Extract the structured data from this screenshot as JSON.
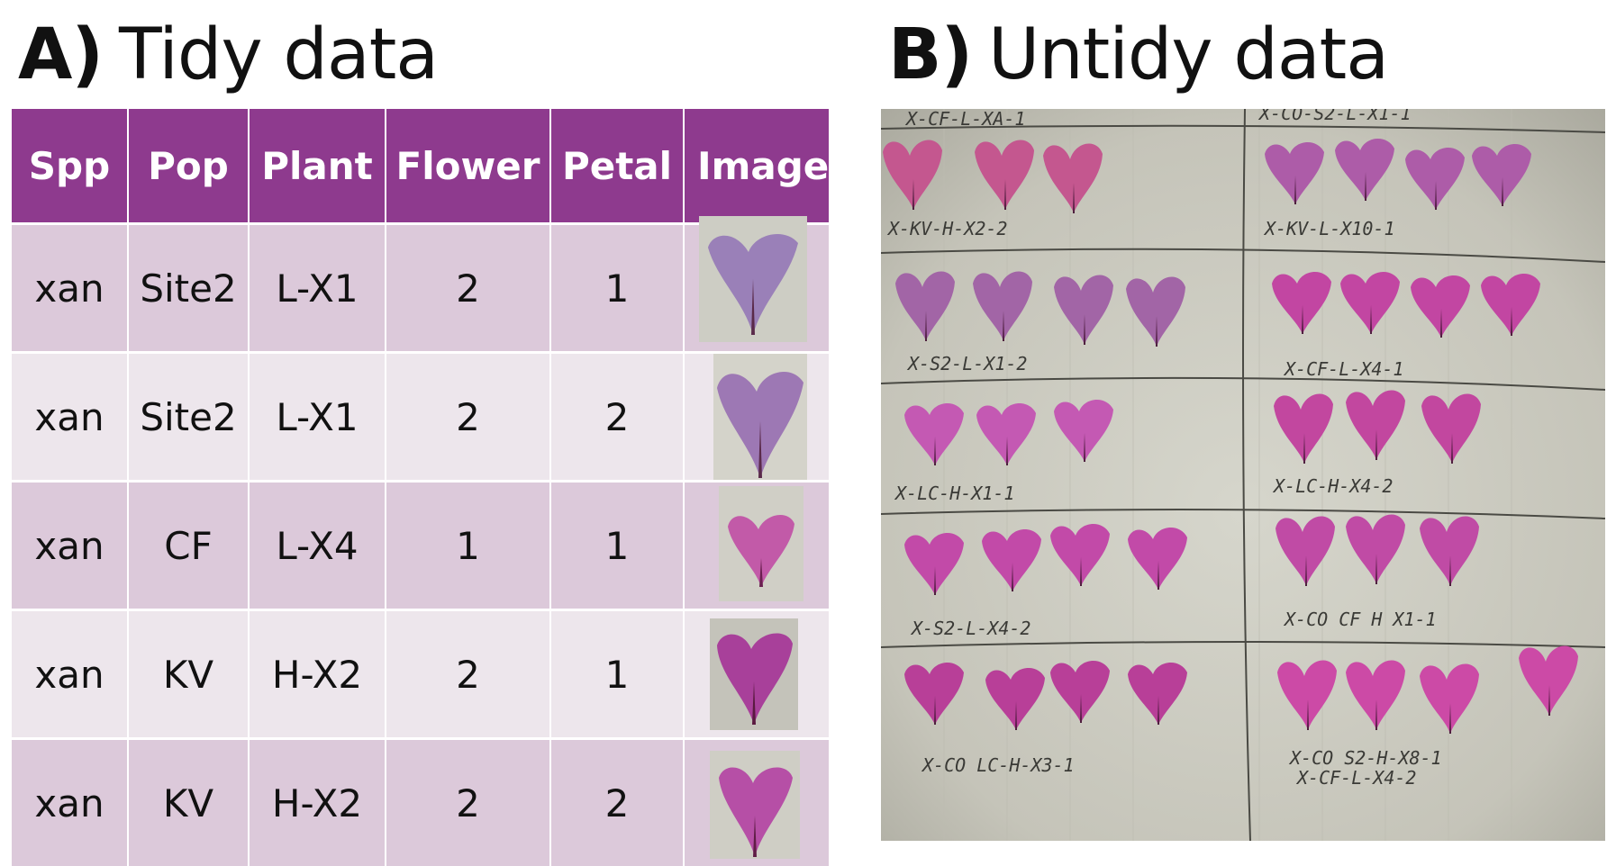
{
  "panel_a": {
    "letter": "A)",
    "title": "Tidy data"
  },
  "panel_b": {
    "letter": "B)",
    "title": "Untidy data"
  },
  "table": {
    "headers": [
      "Spp",
      "Pop",
      "Plant",
      "Flower",
      "Petal",
      "Image"
    ],
    "rows": [
      {
        "spp": "xan",
        "pop": "Site2",
        "plant": "L-X1",
        "flower": "2",
        "petal": "1"
      },
      {
        "spp": "xan",
        "pop": "Site2",
        "plant": "L-X1",
        "flower": "2",
        "petal": "2"
      },
      {
        "spp": "xan",
        "pop": "CF",
        "plant": "L-X4",
        "flower": "1",
        "petal": "1"
      },
      {
        "spp": "xan",
        "pop": "KV",
        "plant": "H-X2",
        "flower": "2",
        "petal": "1"
      },
      {
        "spp": "xan",
        "pop": "KV",
        "plant": "H-X2",
        "flower": "2",
        "petal": "2"
      }
    ]
  },
  "sheet_labels": [
    "X-CF-L-XA-1",
    "X-CO-S2-L-X1-1",
    "X-KV-H-X2-2",
    "X-KV-L-X10-1",
    "X-S2-L-X1-2",
    "X-CF-L-X4-1",
    "X-LC-H-X1-1",
    "X-LC-H-X4-2",
    "X-S2-L-X4-2",
    "X-CO CF H X1-1",
    "X-CO LC-H-X3-1",
    "X-CO S2-H-X8-1",
    "X-CF-L-X4-2"
  ],
  "colors": {
    "header_bg": "#8e3a8e",
    "row_dark": "#dcc9da",
    "row_light": "#ede6ec",
    "paper": "#c9c8bd"
  }
}
